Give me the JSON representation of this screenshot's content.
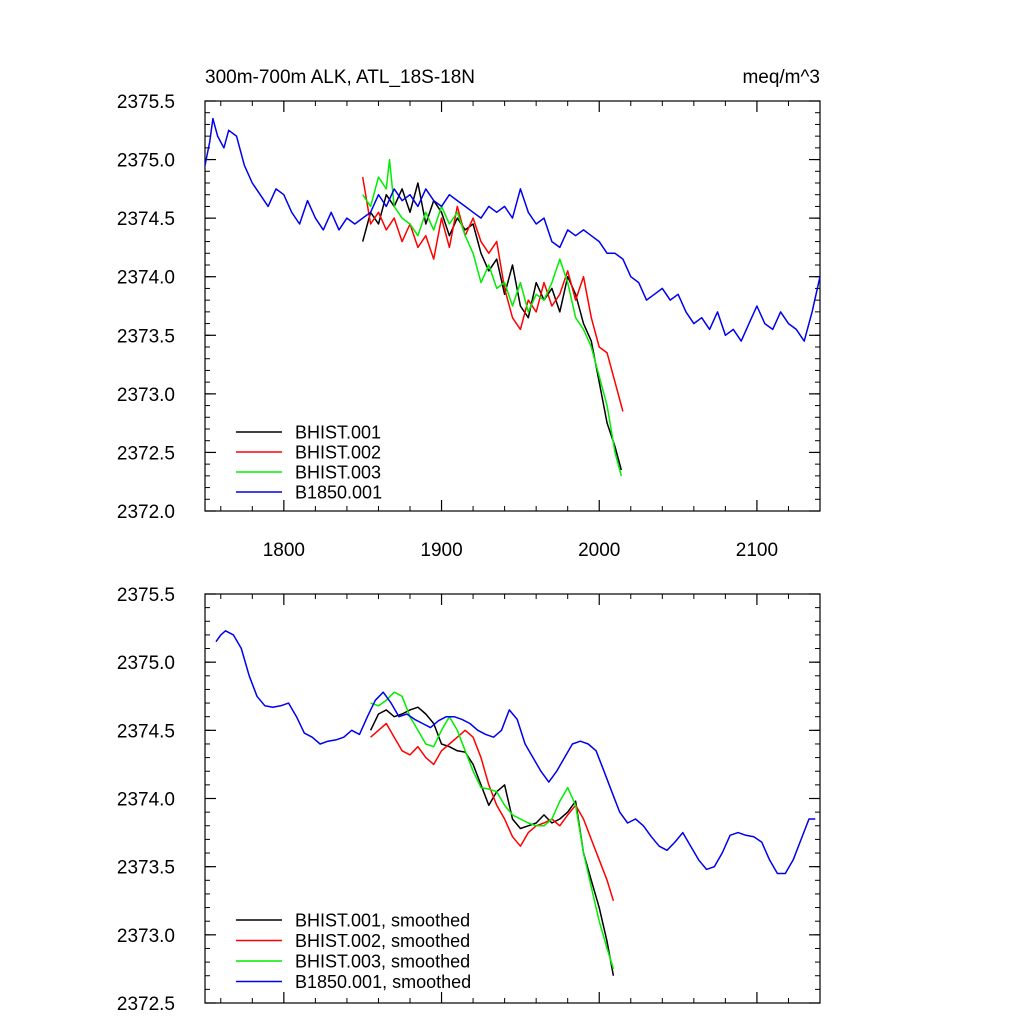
{
  "chart_data": [
    {
      "type": "line",
      "title_left": "300m-700m ALK, ATL_18S-18N",
      "title_right": "meq/m^3",
      "xlim": [
        1750,
        2140
      ],
      "ylim": [
        2372.0,
        2375.5
      ],
      "xticks": [
        1800,
        1900,
        2000,
        2100
      ],
      "xtick_labels": [
        "1800",
        "1900",
        "2000",
        "2100"
      ],
      "yticks": [
        2372.0,
        2372.5,
        2373.0,
        2373.5,
        2374.0,
        2374.5,
        2375.0,
        2375.5
      ],
      "ytick_labels": [
        "2372.0",
        "2372.5",
        "2373.0",
        "2373.5",
        "2374.0",
        "2374.5",
        "2375.0",
        "2375.5"
      ],
      "legend_position": "bottom-left",
      "series": [
        {
          "name": "BHIST.001",
          "color": "#000000",
          "x": [
            1850,
            1855,
            1860,
            1865,
            1870,
            1875,
            1880,
            1885,
            1890,
            1895,
            1900,
            1905,
            1910,
            1915,
            1920,
            1925,
            1930,
            1935,
            1940,
            1945,
            1950,
            1955,
            1960,
            1965,
            1970,
            1975,
            1980,
            1985,
            1990,
            1995,
            2000,
            2005,
            2010,
            2014
          ],
          "values": [
            2374.3,
            2374.55,
            2374.45,
            2374.7,
            2374.6,
            2374.75,
            2374.55,
            2374.8,
            2374.45,
            2374.65,
            2374.55,
            2374.35,
            2374.5,
            2374.4,
            2374.45,
            2374.2,
            2374.05,
            2374.15,
            2373.85,
            2374.1,
            2373.75,
            2373.65,
            2373.95,
            2373.8,
            2373.9,
            2373.7,
            2374.0,
            2373.85,
            2373.6,
            2373.45,
            2373.1,
            2372.75,
            2372.55,
            2372.35
          ]
        },
        {
          "name": "BHIST.002",
          "color": "#ff0000",
          "x": [
            1850,
            1855,
            1860,
            1865,
            1870,
            1875,
            1880,
            1885,
            1890,
            1895,
            1900,
            1905,
            1910,
            1915,
            1920,
            1925,
            1930,
            1935,
            1940,
            1945,
            1950,
            1955,
            1960,
            1965,
            1970,
            1975,
            1980,
            1985,
            1990,
            1995,
            2000,
            2005,
            2010,
            2015
          ],
          "values": [
            2374.85,
            2374.45,
            2374.55,
            2374.4,
            2374.5,
            2374.3,
            2374.45,
            2374.25,
            2374.35,
            2374.15,
            2374.5,
            2374.25,
            2374.6,
            2374.35,
            2374.5,
            2374.3,
            2374.2,
            2374.3,
            2373.9,
            2373.65,
            2373.55,
            2373.8,
            2373.7,
            2373.95,
            2373.75,
            2373.85,
            2374.05,
            2373.8,
            2374.0,
            2373.65,
            2373.4,
            2373.35,
            2373.1,
            2372.85
          ]
        },
        {
          "name": "BHIST.003",
          "color": "#00ee00",
          "x": [
            1850,
            1855,
            1860,
            1865,
            1867,
            1870,
            1875,
            1880,
            1885,
            1890,
            1895,
            1900,
            1905,
            1910,
            1915,
            1920,
            1925,
            1930,
            1935,
            1940,
            1945,
            1950,
            1955,
            1960,
            1965,
            1970,
            1975,
            1980,
            1985,
            1990,
            1995,
            2000,
            2005,
            2010,
            2014
          ],
          "values": [
            2374.7,
            2374.6,
            2374.85,
            2374.75,
            2375.0,
            2374.6,
            2374.5,
            2374.45,
            2374.35,
            2374.55,
            2374.4,
            2374.6,
            2374.45,
            2374.55,
            2374.35,
            2374.2,
            2373.95,
            2374.1,
            2373.9,
            2373.95,
            2373.75,
            2373.95,
            2373.7,
            2373.85,
            2373.8,
            2373.95,
            2374.15,
            2373.95,
            2373.65,
            2373.55,
            2373.4,
            2373.15,
            2372.9,
            2372.5,
            2372.3
          ]
        },
        {
          "name": "B1850.001",
          "color": "#0000ee",
          "x": [
            1750,
            1753,
            1755,
            1758,
            1762,
            1765,
            1770,
            1775,
            1780,
            1785,
            1790,
            1795,
            1800,
            1805,
            1810,
            1815,
            1820,
            1825,
            1830,
            1835,
            1840,
            1845,
            1850,
            1855,
            1860,
            1865,
            1870,
            1875,
            1880,
            1885,
            1890,
            1895,
            1900,
            1905,
            1910,
            1915,
            1920,
            1925,
            1930,
            1935,
            1940,
            1945,
            1950,
            1955,
            1960,
            1965,
            1970,
            1975,
            1980,
            1985,
            1990,
            1995,
            2000,
            2005,
            2010,
            2015,
            2020,
            2025,
            2030,
            2035,
            2040,
            2045,
            2050,
            2055,
            2060,
            2065,
            2070,
            2075,
            2080,
            2085,
            2090,
            2095,
            2100,
            2105,
            2110,
            2115,
            2120,
            2125,
            2130,
            2135,
            2140
          ],
          "values": [
            2374.95,
            2375.15,
            2375.35,
            2375.2,
            2375.1,
            2375.25,
            2375.2,
            2374.95,
            2374.8,
            2374.7,
            2374.6,
            2374.75,
            2374.7,
            2374.55,
            2374.45,
            2374.65,
            2374.5,
            2374.4,
            2374.55,
            2374.4,
            2374.5,
            2374.45,
            2374.5,
            2374.55,
            2374.7,
            2374.6,
            2374.75,
            2374.65,
            2374.7,
            2374.6,
            2374.75,
            2374.65,
            2374.6,
            2374.7,
            2374.65,
            2374.6,
            2374.55,
            2374.5,
            2374.6,
            2374.55,
            2374.6,
            2374.5,
            2374.75,
            2374.55,
            2374.45,
            2374.5,
            2374.3,
            2374.25,
            2374.4,
            2374.35,
            2374.4,
            2374.35,
            2374.3,
            2374.2,
            2374.2,
            2374.15,
            2374.0,
            2373.95,
            2373.8,
            2373.85,
            2373.9,
            2373.8,
            2373.85,
            2373.7,
            2373.6,
            2373.65,
            2373.55,
            2373.7,
            2373.5,
            2373.55,
            2373.45,
            2373.6,
            2373.75,
            2373.6,
            2373.55,
            2373.7,
            2373.6,
            2373.55,
            2373.45,
            2373.7,
            2374.0
          ]
        }
      ]
    },
    {
      "type": "line",
      "xlim": [
        1750,
        2140
      ],
      "ylim": [
        2372.5,
        2375.5
      ],
      "xticks": [
        1800,
        1900,
        2000,
        2100
      ],
      "yticks": [
        2372.5,
        2373.0,
        2373.5,
        2374.0,
        2374.5,
        2375.0,
        2375.5
      ],
      "ytick_labels": [
        "2372.5",
        "2373.0",
        "2373.5",
        "2374.0",
        "2374.5",
        "2375.0",
        "2375.5"
      ],
      "legend_position": "bottom-left",
      "series": [
        {
          "name": "BHIST.001, smoothed",
          "color": "#000000",
          "x": [
            1855,
            1860,
            1865,
            1870,
            1875,
            1880,
            1885,
            1890,
            1895,
            1900,
            1905,
            1910,
            1915,
            1920,
            1925,
            1930,
            1935,
            1940,
            1945,
            1950,
            1955,
            1960,
            1965,
            1970,
            1975,
            1980,
            1985,
            1990,
            1995,
            2000,
            2005,
            2009
          ],
          "values": [
            2374.5,
            2374.62,
            2374.65,
            2374.6,
            2374.62,
            2374.65,
            2374.67,
            2374.62,
            2374.55,
            2374.4,
            2374.38,
            2374.35,
            2374.34,
            2374.25,
            2374.1,
            2373.95,
            2374.05,
            2374.1,
            2373.85,
            2373.78,
            2373.8,
            2373.82,
            2373.88,
            2373.82,
            2373.85,
            2373.9,
            2373.98,
            2373.6,
            2373.4,
            2373.2,
            2372.95,
            2372.7
          ]
        },
        {
          "name": "BHIST.002, smoothed",
          "color": "#ff0000",
          "x": [
            1855,
            1860,
            1865,
            1870,
            1875,
            1880,
            1885,
            1890,
            1895,
            1900,
            1905,
            1910,
            1915,
            1920,
            1925,
            1930,
            1935,
            1940,
            1945,
            1950,
            1955,
            1960,
            1965,
            1970,
            1975,
            1980,
            1985,
            1990,
            1995,
            2000,
            2005,
            2009
          ],
          "values": [
            2374.45,
            2374.5,
            2374.55,
            2374.45,
            2374.35,
            2374.32,
            2374.38,
            2374.3,
            2374.25,
            2374.35,
            2374.4,
            2374.45,
            2374.5,
            2374.45,
            2374.3,
            2374.1,
            2373.95,
            2373.85,
            2373.72,
            2373.65,
            2373.75,
            2373.8,
            2373.82,
            2373.85,
            2373.8,
            2373.88,
            2373.95,
            2373.85,
            2373.7,
            2373.55,
            2373.4,
            2373.25
          ]
        },
        {
          "name": "BHIST.003, smoothed",
          "color": "#00ee00",
          "x": [
            1855,
            1860,
            1865,
            1870,
            1875,
            1880,
            1885,
            1890,
            1895,
            1900,
            1905,
            1910,
            1915,
            1920,
            1925,
            1930,
            1935,
            1940,
            1945,
            1950,
            1955,
            1960,
            1965,
            1970,
            1975,
            1980,
            1985,
            1990,
            1995,
            2000,
            2005,
            2009
          ],
          "values": [
            2374.7,
            2374.68,
            2374.72,
            2374.78,
            2374.75,
            2374.6,
            2374.5,
            2374.4,
            2374.38,
            2374.5,
            2374.6,
            2374.5,
            2374.35,
            2374.2,
            2374.08,
            2374.07,
            2374.05,
            2373.95,
            2373.88,
            2373.85,
            2373.82,
            2373.8,
            2373.8,
            2373.85,
            2373.98,
            2374.08,
            2373.95,
            2373.6,
            2373.35,
            2373.1,
            2372.9,
            2372.75
          ]
        },
        {
          "name": "B1850.001, smoothed",
          "color": "#0000ee",
          "x": [
            1757,
            1760,
            1763,
            1768,
            1773,
            1778,
            1783,
            1788,
            1793,
            1798,
            1803,
            1808,
            1813,
            1818,
            1823,
            1828,
            1833,
            1838,
            1843,
            1848,
            1853,
            1858,
            1863,
            1868,
            1873,
            1878,
            1883,
            1888,
            1893,
            1898,
            1903,
            1908,
            1913,
            1918,
            1923,
            1928,
            1933,
            1938,
            1943,
            1948,
            1953,
            1958,
            1963,
            1968,
            1973,
            1978,
            1983,
            1988,
            1993,
            1998,
            2003,
            2008,
            2013,
            2018,
            2023,
            2028,
            2033,
            2038,
            2043,
            2048,
            2053,
            2058,
            2063,
            2068,
            2073,
            2078,
            2083,
            2088,
            2093,
            2098,
            2103,
            2108,
            2113,
            2118,
            2123,
            2128,
            2133,
            2137
          ],
          "values": [
            2375.15,
            2375.2,
            2375.23,
            2375.2,
            2375.1,
            2374.9,
            2374.75,
            2374.68,
            2374.67,
            2374.68,
            2374.7,
            2374.6,
            2374.48,
            2374.45,
            2374.4,
            2374.42,
            2374.43,
            2374.45,
            2374.5,
            2374.47,
            2374.6,
            2374.72,
            2374.78,
            2374.7,
            2374.6,
            2374.62,
            2374.58,
            2374.55,
            2374.52,
            2374.57,
            2374.6,
            2374.6,
            2374.58,
            2374.55,
            2374.5,
            2374.47,
            2374.45,
            2374.5,
            2374.65,
            2374.58,
            2374.4,
            2374.3,
            2374.2,
            2374.12,
            2374.2,
            2374.3,
            2374.4,
            2374.42,
            2374.4,
            2374.35,
            2374.2,
            2374.05,
            2373.9,
            2373.82,
            2373.85,
            2373.8,
            2373.72,
            2373.65,
            2373.62,
            2373.68,
            2373.75,
            2373.65,
            2373.55,
            2373.48,
            2373.5,
            2373.6,
            2373.73,
            2373.75,
            2373.73,
            2373.72,
            2373.68,
            2373.55,
            2373.45,
            2373.45,
            2373.55,
            2373.7,
            2373.85,
            2373.85
          ]
        }
      ]
    }
  ]
}
